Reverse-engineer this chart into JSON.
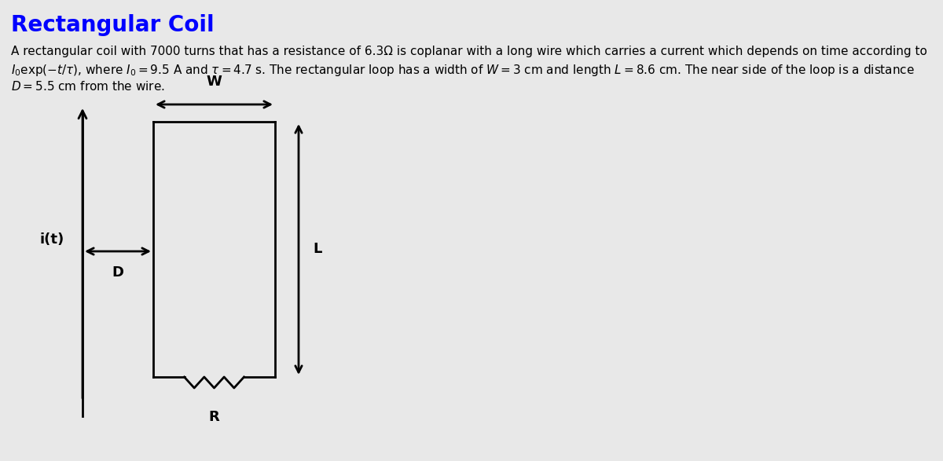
{
  "title": "Rectangular Coil",
  "title_color": "#0000FF",
  "bg_color": "#E8E8E8",
  "line1": "A rectangular coil with 7000 turns that has a resistance of 6.3Ω is coplanar with a long wire which carries a current which depends on time according to",
  "line2a": "$I_0$exp($-t/\\tau$), where $I_0 = 9.5$ A and $\\tau = 4.7$ s. The rectangular loop has a width of $W = 3$ cm and length $L = 8.6$ cm. The near side of the loop is a distance",
  "line3": "$D = 5.5$ cm from the wire.",
  "label_it": "i(t)",
  "label_D": "D",
  "label_W": "W",
  "label_L": "L",
  "label_R": "R"
}
